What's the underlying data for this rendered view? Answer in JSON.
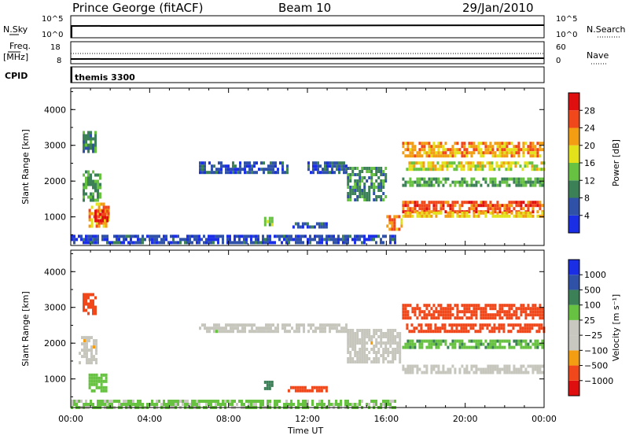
{
  "header": {
    "station": "Prince George (fitACF)",
    "beam": "Beam 10",
    "date": "29/Jan/2010"
  },
  "strip": {
    "nsky_label": "N.Sky",
    "nsky_ticks": [
      "10^5",
      "10^0"
    ],
    "nsearch_label": "N.Search",
    "freq_label_1": "Freq.",
    "freq_label_2": "[MHz]",
    "freq_ticks": [
      "18",
      "8"
    ],
    "nave_label": "Nave",
    "nave_ticks": [
      "60",
      "0"
    ],
    "cpid_label": "CPID",
    "cpid_value": "themis 3300"
  },
  "x_axis": {
    "label": "Time UT",
    "ticks": [
      "00:00",
      "04:00",
      "08:00",
      "12:00",
      "16:00",
      "20:00",
      "00:00"
    ],
    "range_hours": [
      0,
      24
    ]
  },
  "colors": {
    "power": [
      "#1a2ee6",
      "#2f52a8",
      "#3c8058",
      "#66c240",
      "#e3e21a",
      "#f29d12",
      "#f0481a",
      "#e00f0f"
    ],
    "velocity": [
      "#e00f0f",
      "#f0481a",
      "#f29d12",
      "#c8c8c0",
      "#c8c8c0",
      "#66c240",
      "#3c8058",
      "#2f52a8",
      "#1a2ee6"
    ],
    "ground_scatter": "#c6c6bd"
  },
  "chart_data": [
    {
      "type": "heatmap",
      "ylabel": "Slant Range [km]",
      "ylim": [
        200,
        4600
      ],
      "xlim": [
        0,
        24
      ],
      "y_ticks": [
        "4000",
        "3000",
        "2000",
        "1000"
      ],
      "colorbar": {
        "label": "Power [dB]",
        "ticks": [
          "28",
          "24",
          "20",
          "16",
          "12",
          "8",
          "4"
        ],
        "range": [
          0,
          32
        ]
      },
      "regions": [
        {
          "t0": 0.6,
          "t1": 1.3,
          "r0": 2800,
          "r1": 3400,
          "value": 10
        },
        {
          "t0": 0.6,
          "t1": 1.6,
          "r0": 1400,
          "r1": 2300,
          "value": 12
        },
        {
          "t0": 0.9,
          "t1": 2.0,
          "r0": 700,
          "r1": 1400,
          "value": 22
        },
        {
          "t0": 1.2,
          "t1": 1.9,
          "r0": 850,
          "r1": 1200,
          "value": 28
        },
        {
          "t0": 6.5,
          "t1": 11.0,
          "r0": 2200,
          "r1": 2550,
          "value": 6
        },
        {
          "t0": 12.0,
          "t1": 14.0,
          "r0": 2200,
          "r1": 2550,
          "value": 7
        },
        {
          "t0": 14.0,
          "t1": 16.0,
          "r0": 1400,
          "r1": 2400,
          "value": 10
        },
        {
          "t0": 9.8,
          "t1": 10.3,
          "r0": 700,
          "r1": 1000,
          "value": 14
        },
        {
          "t0": 11.0,
          "t1": 13.0,
          "r0": 700,
          "r1": 850,
          "value": 6
        },
        {
          "t0": 0.0,
          "t1": 16.5,
          "r0": 200,
          "r1": 500,
          "value": 5
        },
        {
          "t0": 16.0,
          "t1": 16.8,
          "r0": 650,
          "r1": 1050,
          "value": 22
        },
        {
          "t0": 16.8,
          "t1": 24.0,
          "r0": 2700,
          "r1": 3100,
          "value": 22
        },
        {
          "t0": 17.0,
          "t1": 24.0,
          "r0": 2250,
          "r1": 2550,
          "value": 18
        },
        {
          "t0": 16.8,
          "t1": 24.0,
          "r0": 1800,
          "r1": 2100,
          "value": 12
        },
        {
          "t0": 16.8,
          "t1": 24.0,
          "r0": 1100,
          "r1": 1450,
          "value": 26
        },
        {
          "t0": 16.8,
          "t1": 24.0,
          "r0": 950,
          "r1": 1150,
          "value": 20
        }
      ]
    },
    {
      "type": "heatmap",
      "ylabel": "Slant Range [km]",
      "ylim": [
        200,
        4600
      ],
      "xlim": [
        0,
        24
      ],
      "y_ticks": [
        "4000",
        "3000",
        "2000",
        "1000"
      ],
      "colorbar": {
        "label": "Velocity [m s⁻¹]",
        "ticks": [
          "1000",
          "500",
          "100",
          "25",
          "−25",
          "−100",
          "−500",
          "−1000"
        ],
        "range": [
          -1000,
          1000
        ]
      },
      "regions": [
        {
          "t0": 0.6,
          "t1": 1.3,
          "r0": 2800,
          "r1": 3400,
          "value": -300
        },
        {
          "t0": 0.4,
          "t1": 1.4,
          "r0": 1400,
          "r1": 2200,
          "value": 0
        },
        {
          "t0": 0.9,
          "t1": 1.8,
          "r0": 650,
          "r1": 1150,
          "value": 60
        },
        {
          "t0": 6.5,
          "t1": 14.0,
          "r0": 2250,
          "r1": 2550,
          "value": 0
        },
        {
          "t0": 14.0,
          "t1": 16.8,
          "r0": 1400,
          "r1": 2400,
          "value": 0
        },
        {
          "t0": 16.8,
          "t1": 24.0,
          "r0": 1100,
          "r1": 1400,
          "value": 0
        },
        {
          "t0": 16.8,
          "t1": 24.0,
          "r0": 2700,
          "r1": 3100,
          "value": -200
        },
        {
          "t0": 17.0,
          "t1": 24.0,
          "r0": 2250,
          "r1": 2550,
          "value": -150
        },
        {
          "t0": 16.8,
          "t1": 24.0,
          "r0": 1800,
          "r1": 2100,
          "value": 80
        },
        {
          "t0": 9.8,
          "t1": 10.3,
          "r0": 700,
          "r1": 950,
          "value": 150
        },
        {
          "t0": 11.0,
          "t1": 13.0,
          "r0": 650,
          "r1": 800,
          "value": -200
        },
        {
          "t0": 0.0,
          "t1": 16.5,
          "r0": 200,
          "r1": 420,
          "value": 40
        }
      ]
    }
  ]
}
